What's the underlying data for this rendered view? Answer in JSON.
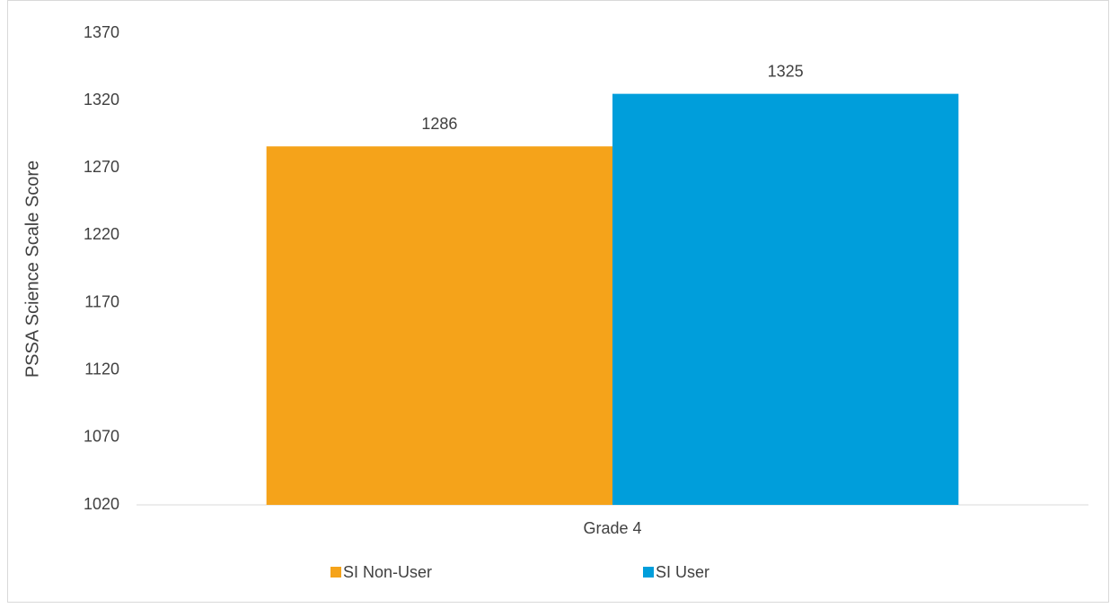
{
  "chart_data": {
    "type": "bar",
    "y_label": "PSSA Science Scale Score",
    "categories": [
      "Grade 4"
    ],
    "series": [
      {
        "name": "SI Non-User",
        "color": "#f5a31a",
        "values": [
          1286
        ]
      },
      {
        "name": "SI User",
        "color": "#009edb",
        "values": [
          1325
        ]
      }
    ],
    "ylim": [
      1020,
      1370
    ],
    "yticks": [
      1020,
      1070,
      1120,
      1170,
      1220,
      1270,
      1320,
      1370
    ],
    "grid": false,
    "legend": "bottom"
  }
}
